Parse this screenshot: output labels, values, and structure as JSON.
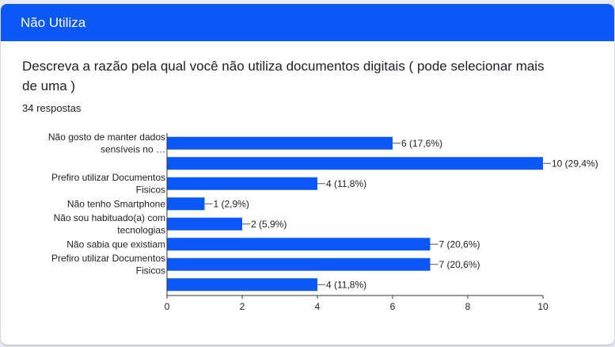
{
  "section": {
    "title": "Não Utiliza"
  },
  "question": {
    "text": "Descreva a razão pela qual você não utiliza documentos digitais ( pode selecionar mais de uma )",
    "responses": "34 respostas"
  },
  "colors": {
    "header": "#0b57f7",
    "bar": "#0b57f7",
    "text": "#202124",
    "axis": "#333333"
  },
  "chart_data": {
    "type": "bar",
    "orientation": "horizontal",
    "categories": [
      [
        "Não gosto de manter dados",
        "sensíveis no …"
      ],
      [
        ""
      ],
      [
        "Prefiro utilizar Documentos",
        "Fisicos"
      ],
      [
        "Não tenho Smartphone"
      ],
      [
        "Não sou habituado(a) com",
        "tecnologias"
      ],
      [
        "Não sabia que existiam"
      ],
      [
        "Prefiro utilizar Documentos",
        "Fisicos"
      ],
      [
        ""
      ]
    ],
    "values": [
      6,
      10,
      4,
      1,
      2,
      7,
      7,
      4
    ],
    "data_labels": [
      "6 (17,6%)",
      "10 (29,4%)",
      "4 (11,8%)",
      "1 (2,9%)",
      "2 (5,9%)",
      "7 (20,6%)",
      "7 (20,6%)",
      "4 (11,8%)"
    ],
    "xlim": [
      0,
      10
    ],
    "xticks": [
      "0",
      "2",
      "4",
      "6",
      "8",
      "10"
    ],
    "grid": false
  }
}
